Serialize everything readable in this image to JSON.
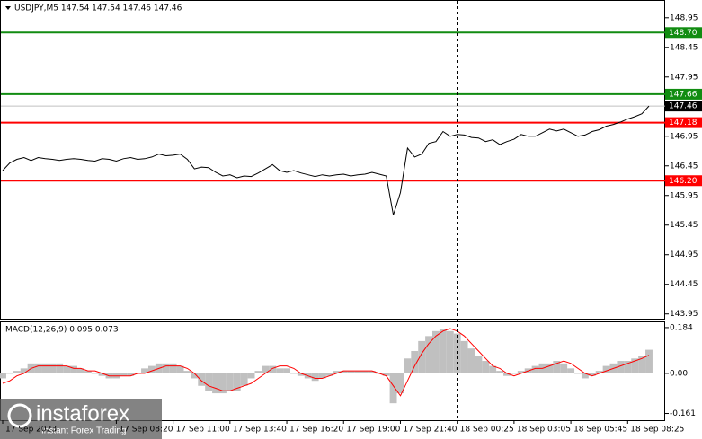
{
  "chart_data": [
    {
      "type": "line",
      "title": "USDJPY,M5 147.54 147.54 147.46 147.46",
      "color": "#000000",
      "categories": [
        "17 Sep 2023",
        null,
        null,
        null,
        null,
        null,
        null,
        null,
        null,
        null,
        null,
        null,
        null,
        null,
        null,
        null,
        "17 Sep 08:20",
        null,
        null,
        null,
        null,
        null,
        null,
        null,
        "17 Sep 11:00",
        null,
        null,
        null,
        null,
        null,
        null,
        null,
        "17 Sep 13:40",
        null,
        null,
        null,
        null,
        null,
        null,
        null,
        "17 Sep 16:20",
        null,
        null,
        null,
        null,
        null,
        null,
        null,
        "17 Sep 19:00",
        null,
        null,
        null,
        null,
        null,
        null,
        null,
        "17 Sep 21:40",
        null,
        null,
        null,
        null,
        null,
        null,
        null,
        "18 Sep 00:25",
        null,
        null,
        null,
        null,
        null,
        null,
        null,
        "18 Sep 03:05",
        null,
        null,
        null,
        null,
        null,
        null,
        null,
        "18 Sep 05:45",
        null,
        null,
        null,
        null,
        null,
        null,
        null,
        "18 Sep 08:25",
        null,
        null,
        null
      ],
      "values": [
        146.37,
        146.5,
        146.56,
        146.59,
        146.54,
        146.59,
        146.57,
        146.56,
        146.54,
        146.56,
        146.57,
        146.56,
        146.54,
        146.53,
        146.57,
        146.56,
        146.53,
        146.57,
        146.59,
        146.56,
        146.57,
        146.6,
        146.65,
        146.62,
        146.63,
        146.65,
        146.56,
        146.4,
        146.43,
        146.42,
        146.34,
        146.28,
        146.3,
        146.25,
        146.28,
        146.27,
        146.33,
        146.4,
        146.47,
        146.37,
        146.34,
        146.37,
        146.33,
        146.3,
        146.27,
        146.3,
        146.28,
        146.3,
        146.31,
        146.28,
        146.3,
        146.31,
        146.34,
        146.31,
        146.28,
        145.62,
        146.0,
        146.75,
        146.6,
        146.65,
        146.83,
        146.86,
        147.03,
        146.95,
        146.98,
        146.97,
        146.93,
        146.92,
        146.86,
        146.89,
        146.81,
        146.86,
        146.9,
        146.98,
        146.95,
        146.95,
        147.01,
        147.07,
        147.04,
        147.07,
        147.01,
        146.95,
        146.97,
        147.03,
        147.06,
        147.12,
        147.15,
        147.19,
        147.24,
        147.28,
        147.33,
        147.46
      ],
      "ylim": [
        143.87,
        149.25
      ],
      "yticks": [
        148.95,
        148.45,
        147.95,
        146.95,
        146.45,
        145.95,
        145.45,
        144.95,
        144.45,
        143.95
      ],
      "levels": [
        {
          "value": 148.7,
          "label": "148.70",
          "color": "#118c11"
        },
        {
          "value": 147.66,
          "label": "147.66",
          "color": "#118c11"
        },
        {
          "value": 147.18,
          "label": "147.18",
          "color": "#ff0000"
        },
        {
          "value": 146.2,
          "label": "146.20",
          "color": "#ff0000"
        }
      ],
      "last_price": {
        "value": 147.46,
        "label": "147.46",
        "color": "#000000"
      }
    },
    {
      "type": "macd",
      "title": "MACD(12,26,9) 0.095 0.073",
      "histogram": {
        "color": "#c0c0c0",
        "values": [
          -0.02,
          0.0,
          0.01,
          0.02,
          0.04,
          0.04,
          0.04,
          0.04,
          0.04,
          0.03,
          0.03,
          0.02,
          0.01,
          0.0,
          -0.01,
          -0.02,
          -0.02,
          -0.01,
          -0.01,
          0.0,
          0.02,
          0.03,
          0.04,
          0.04,
          0.04,
          0.03,
          0.01,
          -0.02,
          -0.05,
          -0.07,
          -0.08,
          -0.08,
          -0.07,
          -0.07,
          -0.05,
          -0.02,
          0.01,
          0.03,
          0.03,
          0.02,
          0.02,
          0.0,
          -0.01,
          -0.02,
          -0.03,
          -0.02,
          -0.01,
          0.01,
          0.01,
          0.01,
          0.01,
          0.01,
          0.01,
          0.0,
          -0.01,
          -0.12,
          -0.08,
          0.06,
          0.09,
          0.13,
          0.15,
          0.17,
          0.18,
          0.17,
          0.16,
          0.13,
          0.1,
          0.07,
          0.05,
          0.03,
          0.01,
          -0.01,
          0.0,
          0.01,
          0.02,
          0.03,
          0.04,
          0.04,
          0.05,
          0.04,
          0.02,
          0.0,
          -0.02,
          -0.01,
          0.01,
          0.03,
          0.04,
          0.05,
          0.05,
          0.06,
          0.07,
          0.095
        ]
      },
      "signal": {
        "color": "#ff0000",
        "values": [
          -0.04,
          -0.03,
          -0.01,
          0.0,
          0.02,
          0.03,
          0.03,
          0.03,
          0.03,
          0.03,
          0.02,
          0.02,
          0.01,
          0.01,
          0.0,
          -0.01,
          -0.01,
          -0.01,
          -0.01,
          0.0,
          0.0,
          0.01,
          0.02,
          0.03,
          0.03,
          0.03,
          0.02,
          0.0,
          -0.03,
          -0.05,
          -0.06,
          -0.07,
          -0.07,
          -0.06,
          -0.05,
          -0.04,
          -0.02,
          0.0,
          0.02,
          0.03,
          0.03,
          0.02,
          0.0,
          -0.01,
          -0.02,
          -0.02,
          -0.01,
          0.0,
          0.01,
          0.01,
          0.01,
          0.01,
          0.01,
          0.0,
          -0.01,
          -0.05,
          -0.09,
          -0.03,
          0.03,
          0.08,
          0.12,
          0.15,
          0.17,
          0.18,
          0.17,
          0.15,
          0.12,
          0.09,
          0.06,
          0.03,
          0.02,
          0.0,
          -0.01,
          0.0,
          0.01,
          0.02,
          0.02,
          0.03,
          0.04,
          0.05,
          0.04,
          0.02,
          0.0,
          -0.01,
          0.0,
          0.01,
          0.02,
          0.03,
          0.04,
          0.05,
          0.06,
          0.073
        ]
      },
      "ylim": [
        -0.188,
        0.209
      ],
      "yticks": [
        0.184,
        {
          "value": 0,
          "label": "0.00"
        },
        -0.161
      ]
    }
  ],
  "watermark": {
    "brand": "instaforex",
    "tagline": "Instant Forex Trading"
  }
}
